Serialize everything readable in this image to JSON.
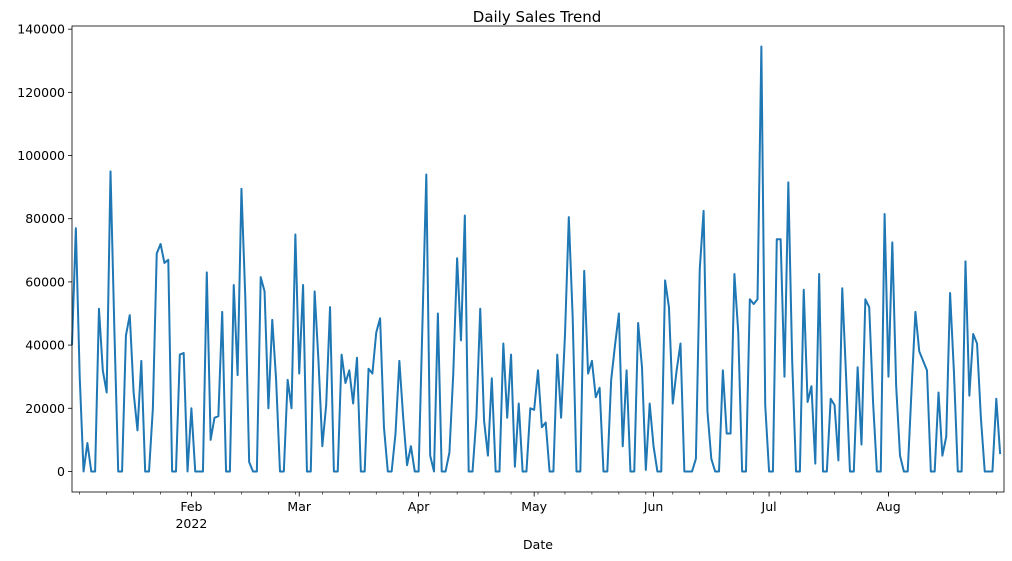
{
  "chart_data": {
    "type": "line",
    "title": "Daily Sales Trend",
    "xlabel": "Date",
    "ylabel": "",
    "xlim": [
      "2022-01-01",
      "2022-08-31"
    ],
    "ylim": [
      -6500,
      141000
    ],
    "grid": false,
    "legend": "none",
    "line_color": "#1f77b4",
    "y_ticks": [
      0,
      20000,
      40000,
      60000,
      80000,
      100000,
      120000,
      140000
    ],
    "y_tick_labels": [
      "0",
      "20000",
      "40000",
      "60000",
      "80000",
      "100000",
      "120000",
      "140000"
    ],
    "x_ticks": [
      {
        "date": "2022-02-01",
        "label": "Feb",
        "sublabel": "2022"
      },
      {
        "date": "2022-03-01",
        "label": "Mar",
        "sublabel": ""
      },
      {
        "date": "2022-04-01",
        "label": "Apr",
        "sublabel": ""
      },
      {
        "date": "2022-05-01",
        "label": "May",
        "sublabel": ""
      },
      {
        "date": "2022-06-01",
        "label": "Jun",
        "sublabel": ""
      },
      {
        "date": "2022-07-01",
        "label": "Jul",
        "sublabel": ""
      },
      {
        "date": "2022-08-01",
        "label": "Aug",
        "sublabel": ""
      }
    ],
    "series": [
      {
        "start": "2022-01-01",
        "values": [
          40000,
          77000,
          30000,
          0,
          9000,
          0,
          0,
          51500,
          32000,
          25000,
          95000,
          45000,
          0,
          0,
          43000,
          49500,
          25000,
          13000,
          35000,
          0,
          0,
          20000,
          69000,
          72000,
          66000,
          67000,
          0,
          0,
          37000,
          37500,
          0,
          20000,
          0,
          0,
          0,
          63000,
          10000,
          17000,
          17500,
          50500,
          0,
          0,
          59000,
          30500,
          89500,
          55000,
          3000,
          0,
          0,
          61500,
          57000,
          20000,
          48000,
          29000,
          0,
          0,
          29000,
          20000,
          75000,
          31000,
          59000,
          0,
          0,
          57000,
          35000,
          8000,
          21000,
          52000,
          0,
          0,
          37000,
          28000,
          32000,
          21500,
          36000,
          0,
          0,
          32500,
          31000,
          44000,
          48500,
          14000,
          0,
          0,
          12000,
          35000,
          17000,
          2000,
          8000,
          0,
          0,
          47000,
          94000,
          5000,
          0,
          50000,
          0,
          0,
          6000,
          31000,
          67500,
          41500,
          81000,
          0,
          0,
          17000,
          51500,
          16000,
          5000,
          29500,
          0,
          0,
          40500,
          17000,
          37000,
          1500,
          21500,
          0,
          0,
          20000,
          19500,
          32000,
          14000,
          15500,
          0,
          0,
          37000,
          17000,
          43000,
          80500,
          49000,
          0,
          0,
          63500,
          31000,
          35000,
          23500,
          26500,
          0,
          0,
          29000,
          40000,
          50000,
          8000,
          32000,
          0,
          0,
          47000,
          33000,
          500,
          21500,
          8000,
          0,
          0,
          60500,
          52000,
          21500,
          32000,
          40500,
          0,
          0,
          0,
          4000,
          64000,
          82500,
          19000,
          4000,
          0,
          0,
          32000,
          12000,
          12000,
          62500,
          44000,
          0,
          0,
          54500,
          53000,
          54500,
          134500,
          21000,
          0,
          0,
          73500,
          73500,
          30000,
          91500,
          35000,
          0,
          0,
          57500,
          22000,
          27000,
          2500,
          62500,
          0,
          0,
          23000,
          21000,
          3500,
          58000,
          30000,
          0,
          0,
          33000,
          8500,
          54500,
          52000,
          22000,
          0,
          0,
          81500,
          30000,
          72500,
          27000,
          5000,
          0,
          0,
          26000,
          50500,
          38000,
          35000,
          32000,
          0,
          0,
          25000,
          5000,
          11000,
          56500,
          31500,
          0,
          0,
          66500,
          24000,
          43500,
          40500,
          17000,
          0,
          0,
          0,
          23000,
          5500
        ]
      }
    ]
  }
}
